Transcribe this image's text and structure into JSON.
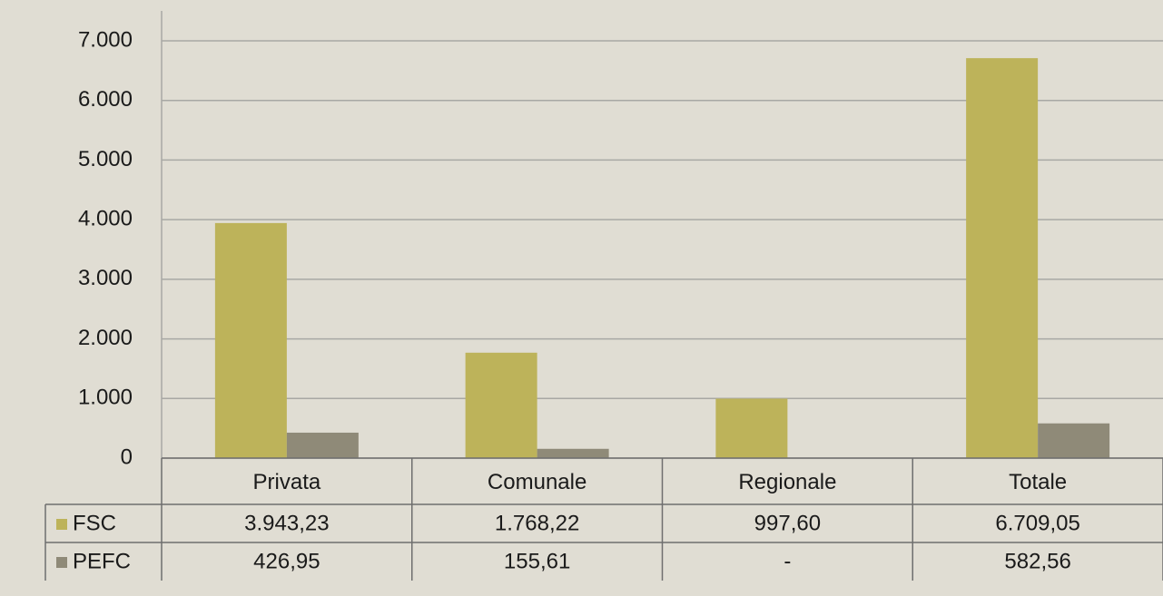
{
  "chart_data": {
    "type": "bar",
    "categories": [
      "Privata",
      "Comunale",
      "Regionale",
      "Totale"
    ],
    "series": [
      {
        "name": "FSC",
        "color": "#bdb35a",
        "values": [
          3943.23,
          1768.22,
          997.6,
          6709.05
        ],
        "value_labels": [
          "3.943,23",
          "1.768,22",
          "997,60",
          "6.709,05"
        ]
      },
      {
        "name": "PEFC",
        "color": "#8f8a78",
        "values": [
          426.95,
          155.61,
          null,
          582.56
        ],
        "value_labels": [
          "426,95",
          "155,61",
          "-",
          "582,56"
        ]
      }
    ],
    "ylim": [
      0,
      7000
    ],
    "yticks": [
      0,
      {
        "value": 1000,
        "label": "1.000"
      },
      {
        "value": 2000,
        "label": "2.000"
      },
      {
        "value": 3000,
        "label": "3.000"
      },
      {
        "value": 4000,
        "label": "4.000"
      },
      {
        "value": 5000,
        "label": "5.000"
      },
      {
        "value": 6000,
        "label": "6.000"
      },
      {
        "value": 7000,
        "label": "7.000"
      }
    ],
    "grid": true
  }
}
